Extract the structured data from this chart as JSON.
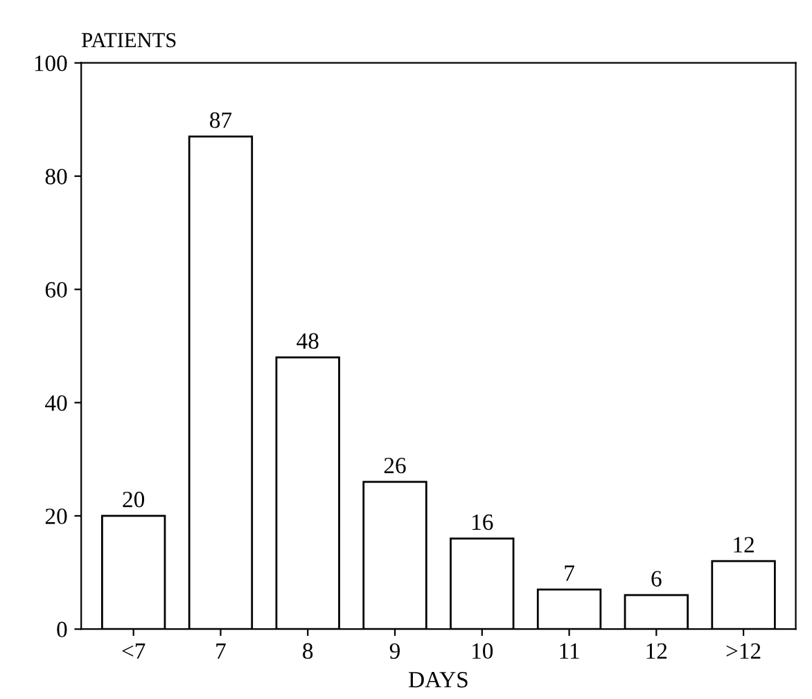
{
  "chart_data": {
    "type": "bar",
    "xlabel": "DAYS",
    "ylabel": "PATIENTS",
    "categories": [
      "<7",
      "7",
      "8",
      "9",
      "10",
      "11",
      "12",
      ">12"
    ],
    "values": [
      20,
      87,
      48,
      26,
      16,
      7,
      6,
      12
    ],
    "color": "#ffffff",
    "ylim": [
      0,
      100
    ],
    "yticks": [
      0,
      20,
      40,
      60,
      80,
      100
    ],
    "data_labels": true,
    "grid": false,
    "legend": false
  }
}
